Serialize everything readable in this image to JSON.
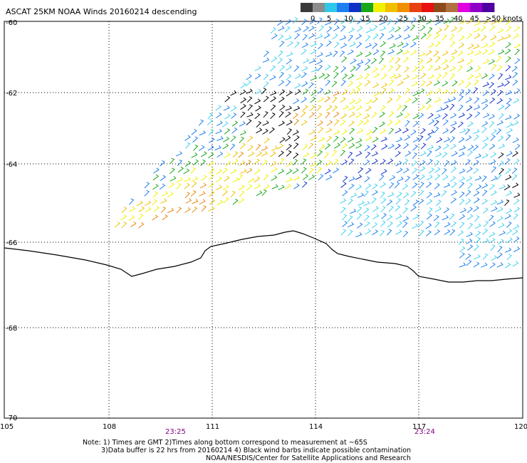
{
  "title": "ASCAT 25KM NOAA Winds 20160214 descending",
  "legend": {
    "labels": [
      "0",
      "5",
      "10",
      "15",
      "20",
      "25",
      "30",
      "35",
      "40",
      "45",
      ">50 knots"
    ],
    "colors": [
      "#3a3a3a",
      "#8c8c8c",
      "#30c8e8",
      "#1e7ff0",
      "#1030c8",
      "#18a818",
      "#f0f000",
      "#f0c000",
      "#f09000",
      "#e84010",
      "#e81010",
      "#8c4a1c",
      "#b07040",
      "#e000e0",
      "#9000c8",
      "#5000a0"
    ]
  },
  "latitude_labels": [
    "-60",
    "-62",
    "-64",
    "-66",
    "-68",
    "-70"
  ],
  "longitude_labels": [
    "105",
    "108",
    "111",
    "114",
    "117",
    "120"
  ],
  "times": [
    "23:25",
    "23:24"
  ],
  "notes": [
    "Note: 1) Times are GMT 2)Times along bottom correspond to measurement at ~65S",
    "3)Data buffer is 22 hrs from 20160214 4) Black wind barbs indicate possible contamination",
    "NOAA/NESDIS/Center for Satellite Applications and Research"
  ],
  "wind_barb_colors": {
    "contaminated": "#000000",
    "light": "#40d0f0",
    "moderate": "#1e7ff0",
    "strong": "#1030c8",
    "green": "#18a818",
    "yellow": "#f0f000",
    "gold": "#f0c000",
    "orange": "#e88a10",
    "red": "#e84010"
  }
}
